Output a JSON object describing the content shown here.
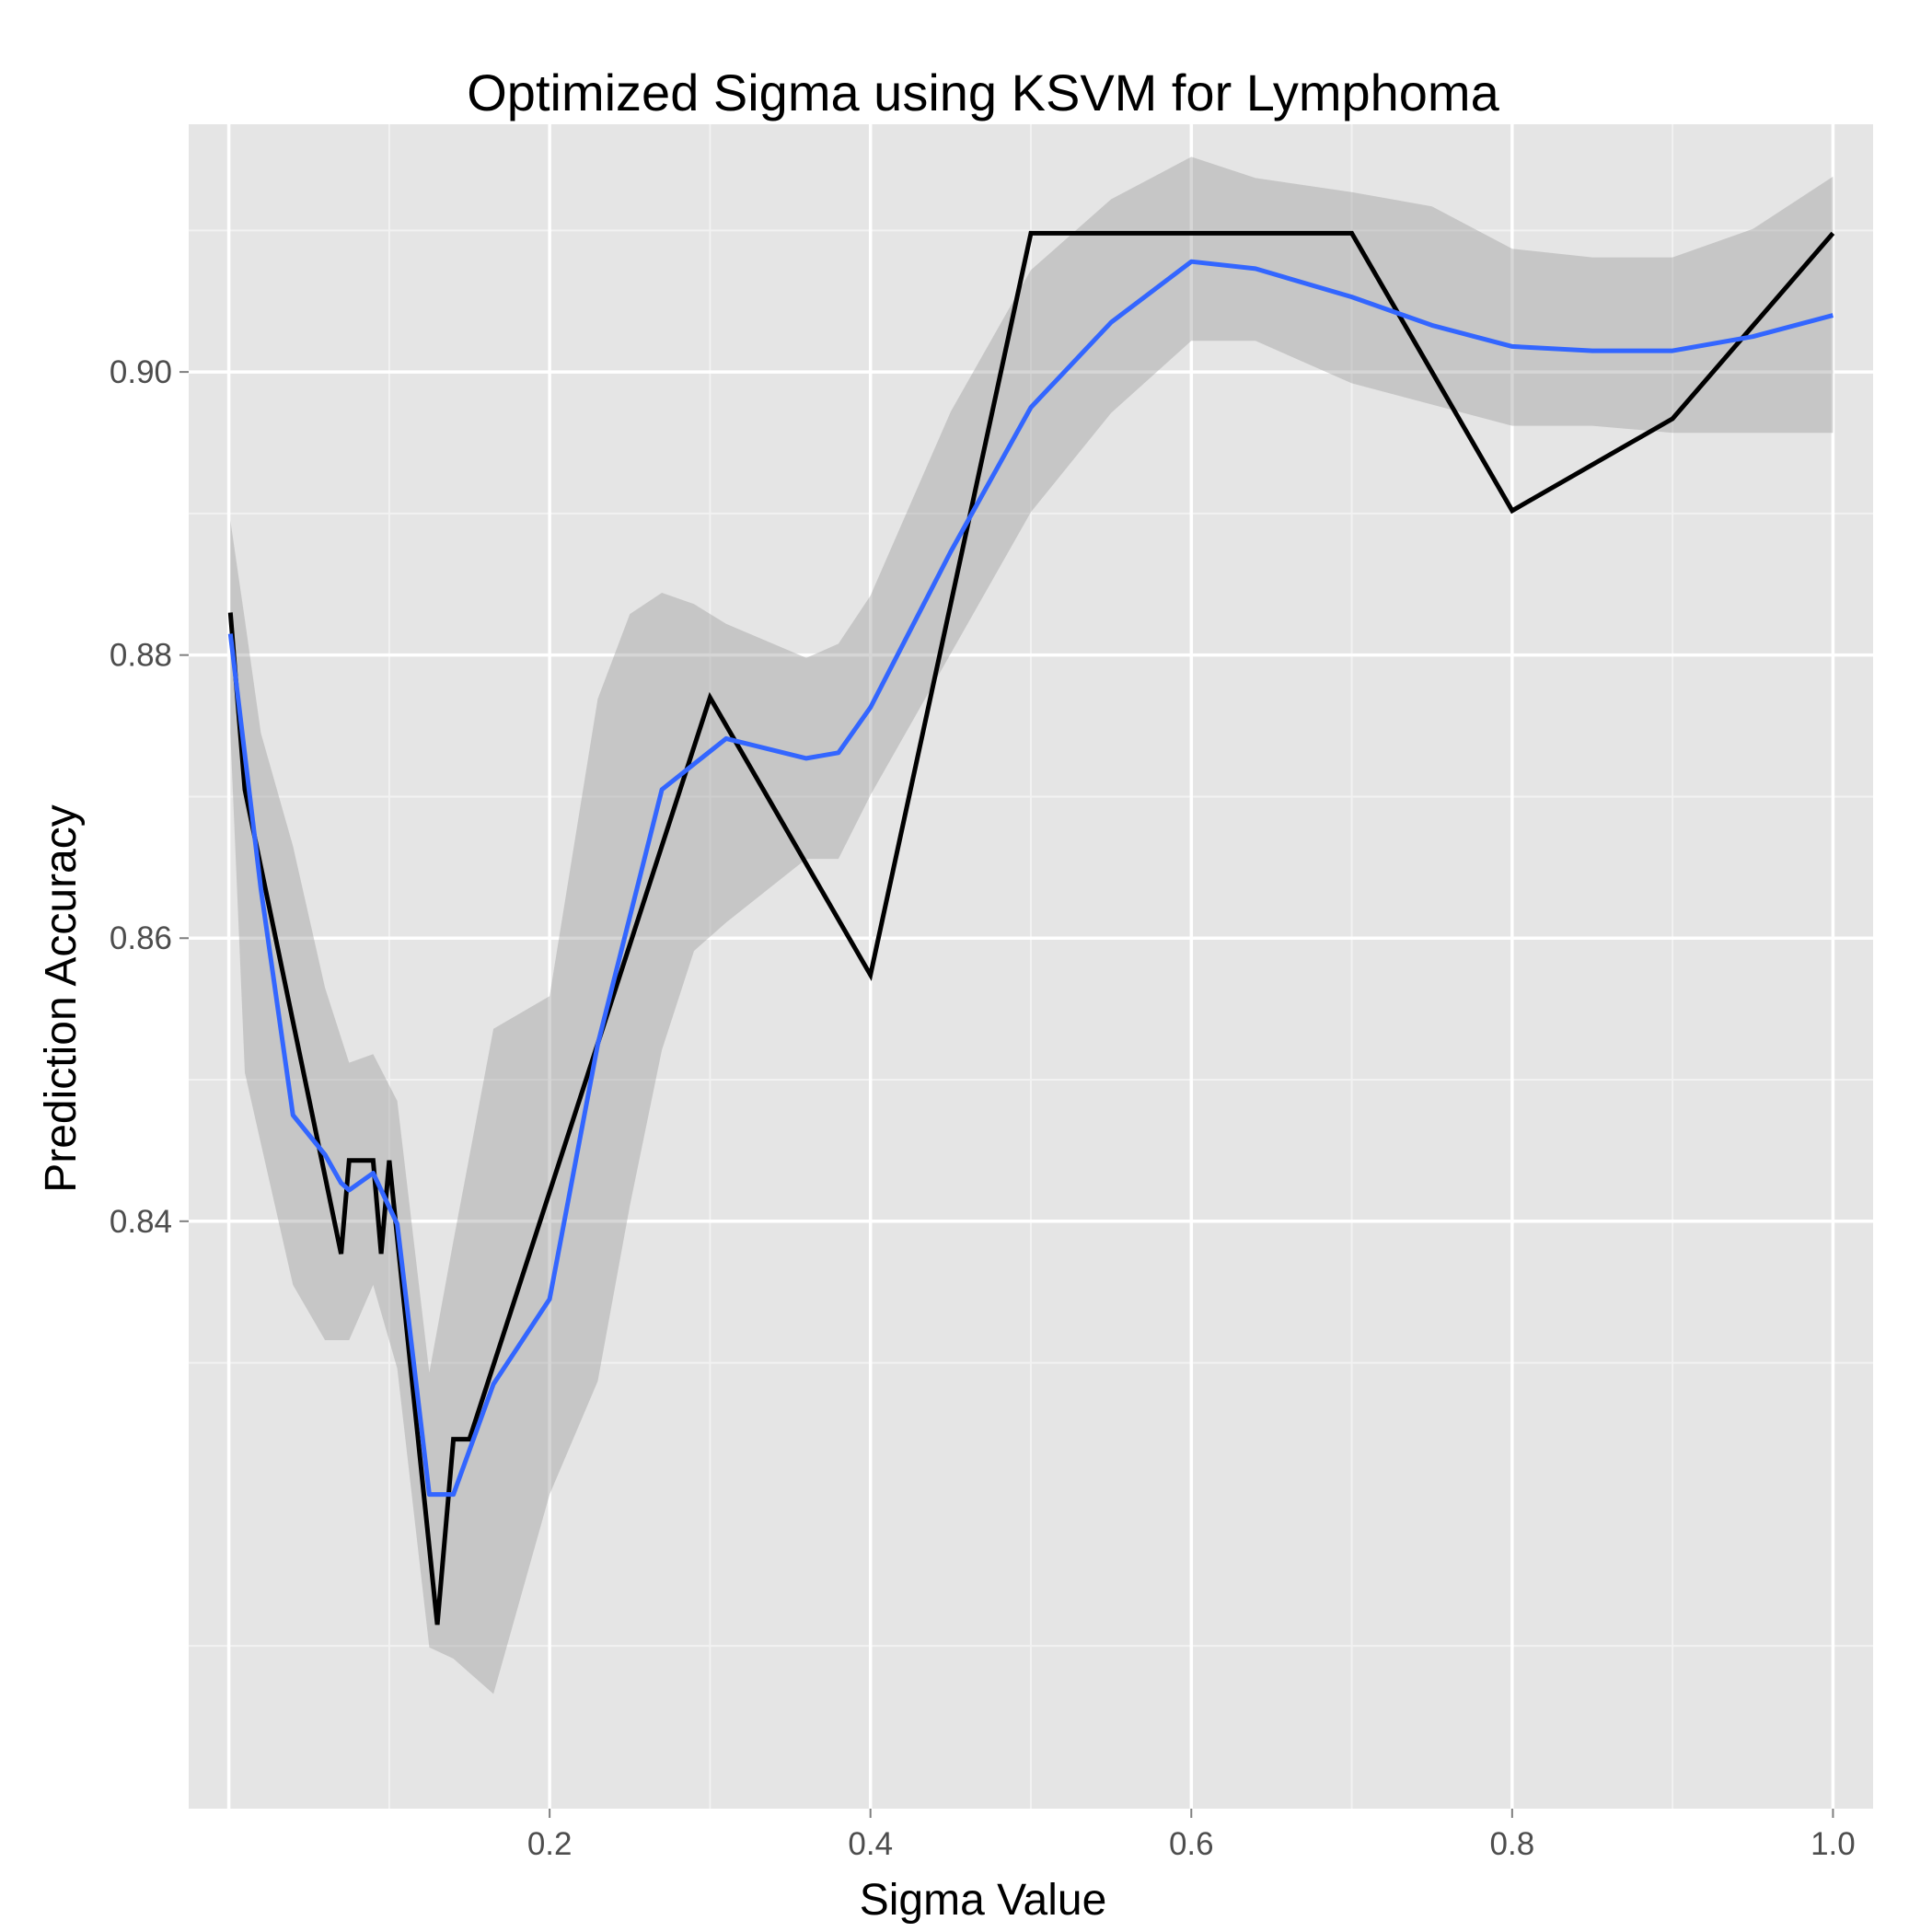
{
  "chart_data": {
    "type": "line",
    "title": "Optimized Sigma using KSVM for Lymphoma",
    "xlabel": "Sigma Value",
    "ylabel": "Prediction Accuracy",
    "xlim": [
      -0.025,
      1.025
    ],
    "ylim": [
      0.7985,
      0.9175
    ],
    "x_ticks": [
      0.2,
      0.4,
      0.6,
      0.8,
      1.0
    ],
    "x_tick_labels": [
      "0.2",
      "0.4",
      "0.6",
      "0.8",
      "1.0"
    ],
    "y_ticks": [
      0.84,
      0.86,
      0.88,
      0.9
    ],
    "y_tick_labels": [
      "0.84",
      "0.86",
      "0.88",
      "0.90"
    ],
    "grid": true,
    "background": "#e5e5e5",
    "series": [
      {
        "kind": "observed",
        "color": "#000000",
        "x": [
          0.001,
          0.01,
          0.07,
          0.075,
          0.08,
          0.09,
          0.095,
          0.1,
          0.13,
          0.14,
          0.15,
          0.3,
          0.4,
          0.5,
          0.6,
          0.7,
          0.8,
          0.9,
          1.0
        ],
        "y": [
          0.883,
          0.8705,
          0.8377,
          0.8443,
          0.8443,
          0.8443,
          0.8377,
          0.8443,
          0.8115,
          0.8246,
          0.8246,
          0.877,
          0.8574,
          0.9098,
          0.9098,
          0.9098,
          0.8902,
          0.8967,
          0.9098
        ]
      },
      {
        "kind": "smoothed",
        "color": "#3366ff",
        "x": [
          0.001,
          0.02,
          0.04,
          0.06,
          0.07,
          0.075,
          0.09,
          0.105,
          0.125,
          0.14,
          0.165,
          0.2,
          0.23,
          0.27,
          0.31,
          0.36,
          0.38,
          0.4,
          0.45,
          0.5,
          0.55,
          0.6,
          0.64,
          0.7,
          0.75,
          0.8,
          0.85,
          0.9,
          0.95,
          1.0
        ],
        "y": [
          0.8815,
          0.8635,
          0.8475,
          0.8447,
          0.8427,
          0.8422,
          0.8434,
          0.8398,
          0.8207,
          0.8207,
          0.8285,
          0.8345,
          0.8525,
          0.8705,
          0.8741,
          0.8727,
          0.8731,
          0.8763,
          0.8873,
          0.8975,
          0.9035,
          0.9078,
          0.9073,
          0.9053,
          0.9033,
          0.9018,
          0.9015,
          0.9015,
          0.9025,
          0.904
        ]
      }
    ],
    "confidence_band": {
      "color": "#999999",
      "x": [
        0.001,
        0.01,
        0.02,
        0.04,
        0.06,
        0.075,
        0.09,
        0.105,
        0.125,
        0.14,
        0.165,
        0.2,
        0.23,
        0.25,
        0.27,
        0.29,
        0.31,
        0.36,
        0.38,
        0.4,
        0.45,
        0.5,
        0.55,
        0.6,
        0.64,
        0.7,
        0.75,
        0.8,
        0.85,
        0.9,
        0.95,
        1.0
      ],
      "upper": [
        0.8895,
        0.8825,
        0.8745,
        0.8665,
        0.8565,
        0.8512,
        0.8518,
        0.8485,
        0.8293,
        0.8386,
        0.8536,
        0.8559,
        0.8769,
        0.8829,
        0.8844,
        0.8836,
        0.8822,
        0.8798,
        0.8808,
        0.8842,
        0.8972,
        0.9072,
        0.9122,
        0.9152,
        0.9137,
        0.9127,
        0.9117,
        0.9087,
        0.9081,
        0.9081,
        0.9101,
        0.9138
      ],
      "lower": [
        0.8745,
        0.8505,
        0.8455,
        0.8355,
        0.8316,
        0.8316,
        0.8355,
        0.8296,
        0.8099,
        0.8091,
        0.8066,
        0.8207,
        0.8287,
        0.8411,
        0.8521,
        0.8591,
        0.8611,
        0.8656,
        0.8656,
        0.8701,
        0.8801,
        0.8901,
        0.8971,
        0.9022,
        0.9022,
        0.8992,
        0.8977,
        0.8962,
        0.8962,
        0.8957,
        0.8957,
        0.8957
      ]
    }
  }
}
